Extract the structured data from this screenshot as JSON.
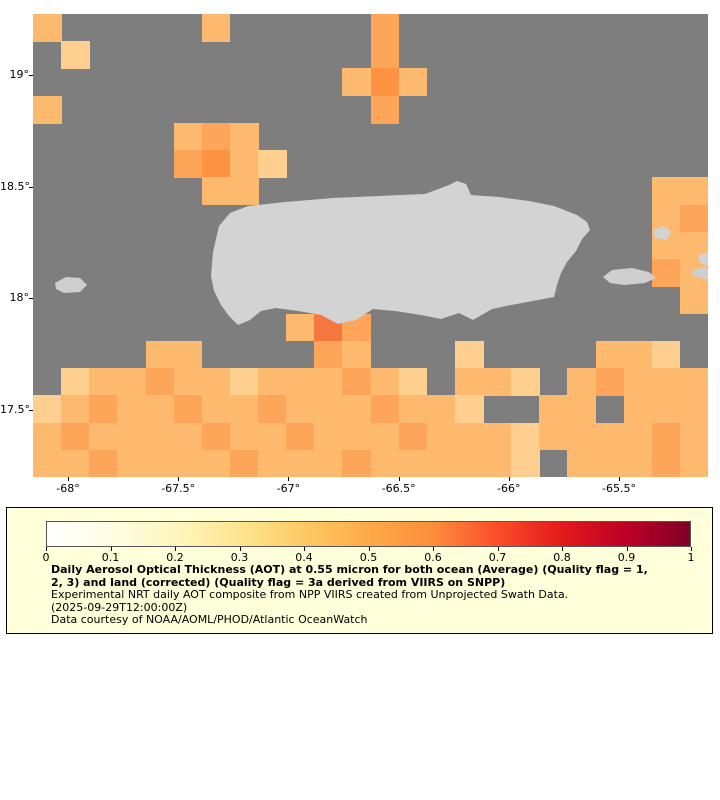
{
  "chart_data": {
    "type": "heatmap",
    "description": "Gridded satellite aerosol optical thickness raster over the Puerto Rico region; gray = no data, yellow-orange cells = AOT values approx 0.1 - 0.45, light gray = land mask",
    "x_axis": {
      "range_deg": [
        -68.159,
        -65.096
      ],
      "ticks": [
        {
          "label": "-68°",
          "deg": -68
        },
        {
          "label": "-67.5°",
          "deg": -67.5
        },
        {
          "label": "-67°",
          "deg": -67
        },
        {
          "label": "-66.5°",
          "deg": -66.5
        },
        {
          "label": "-66°",
          "deg": -66
        },
        {
          "label": "-65.5°",
          "deg": -65.5
        }
      ]
    },
    "y_axis": {
      "range_deg": [
        17.2,
        19.273
      ],
      "ticks": [
        {
          "label": "19°",
          "deg": 19
        },
        {
          "label": "18.5°",
          "deg": 18.5
        },
        {
          "label": "18°",
          "deg": 18
        },
        {
          "label": "17.5°",
          "deg": 17.5
        }
      ]
    },
    "grid": {
      "cols": 24,
      "rows": 17,
      "no_data_color": "#7E7E7E",
      "land_color": "#D3D3D3",
      "cell_colors": {
        "a": "#FECF8E",
        "b": "#FDB96E",
        "c": "#FDA559",
        "d": "#FD9243",
        "e": "#F5773F"
      },
      "rows_pattern": [
        "b.....b.....c...........",
        ".a..........c...........",
        "...........bdb..........",
        "b...........c...........",
        ".....bcb................",
        ".....cdba...............",
        "......bb..............bb",
        "......................bc",
        "......................bb",
        "......................cb",
        ".......................b",
        ".........bec............",
        "....bb....cb...a....bba.",
        ".abbcbbabbbcba.bba.bcbbb",
        "abcbbcbbcbbbcbba..bb.bbb",
        "bcbbbbcbbcbbbcbbbabbbbcb",
        "bbcbbbbcbbbcbbbbba.bbbcb"
      ]
    },
    "colorbar": {
      "min": 0,
      "max": 1,
      "ticks": [
        "0",
        "0.1",
        "0.2",
        "0.3",
        "0.4",
        "0.5",
        "0.6",
        "0.7",
        "0.8",
        "0.9",
        "1"
      ],
      "stops": [
        "#FFFFFF",
        "#FFFDE3",
        "#FFF6BF",
        "#FEE58F",
        "#FEC965",
        "#FDAA48",
        "#FD8D3C",
        "#FC4E2A",
        "#E31A1C",
        "#BD0026",
        "#800026"
      ]
    }
  },
  "legend": {
    "bg": "#FFFFD9",
    "title_line1": "Daily Aerosol Optical Thickness (AOT) at 0.55 micron for both ocean (Average) (Quality flag = 1,",
    "title_line2": "2, 3) and land (corrected) (Quality flag = 3a derived from VIIRS on SNPP)",
    "line2": "Experimental NRT daily AOT composite from NPP VIIRS created from Unprojected Swath Data.",
    "line3": "(2025-09-29T12:00:00Z)",
    "line4": "Data courtesy of NOAA/AOML/PHOD/Atlantic OceanWatch"
  }
}
